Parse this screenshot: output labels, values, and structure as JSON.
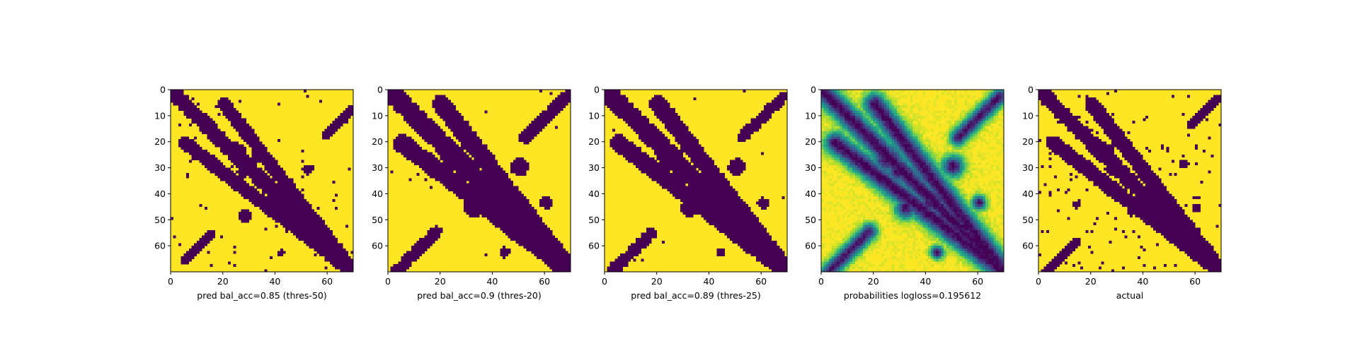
{
  "chart_data": [
    {
      "type": "heatmap",
      "caption": "pred bal_acc=0.85 (thres-50)",
      "mode": "binary",
      "xlim": [
        0,
        70
      ],
      "ylim": [
        70,
        0
      ],
      "xticks": [
        0,
        20,
        40,
        60
      ],
      "yticks": [
        0,
        10,
        20,
        30,
        40,
        50,
        60
      ],
      "grid_size": 70,
      "colormap": "viridis",
      "low_color": "#440154",
      "high_color": "#fde725",
      "seed": 11,
      "features": {
        "diagonal": {
          "width": 2.4
        },
        "anti_diagonal": {
          "from": [
            5,
            20
          ],
          "to": [
            70,
            70
          ],
          "width": 2.2
        },
        "top_right_arc": {
          "center": [
            64,
            12
          ],
          "length": 10,
          "width": 1.4
        },
        "bottom_left_arc": {
          "center": [
            10,
            60
          ],
          "length": 10,
          "width": 1.4
        },
        "blobs": [
          {
            "x": 25,
            "y": 24,
            "r": 3.2
          },
          {
            "x": 40,
            "y": 40,
            "r": 3.0
          },
          {
            "x": 27,
            "y": 31,
            "r": 2.0
          },
          {
            "x": 32,
            "y": 26,
            "r": 1.8
          },
          {
            "x": 28,
            "y": 48,
            "r": 2.2
          },
          {
            "x": 52,
            "y": 30,
            "r": 1.8
          },
          {
            "x": 46,
            "y": 49,
            "r": 1.6
          },
          {
            "x": 42,
            "y": 62,
            "r": 1.2
          }
        ],
        "noise": 0.015
      }
    },
    {
      "type": "heatmap",
      "caption": "pred bal_acc=0.9 (thres-20)",
      "mode": "binary",
      "xlim": [
        0,
        70
      ],
      "ylim": [
        70,
        0
      ],
      "xticks": [
        0,
        20,
        40,
        60
      ],
      "yticks": [
        0,
        10,
        20,
        30,
        40,
        50,
        60
      ],
      "grid_size": 70,
      "colormap": "viridis",
      "low_color": "#440154",
      "high_color": "#fde725",
      "seed": 23,
      "features": {
        "diagonal": {
          "width": 3.2
        },
        "anti_diagonal": {
          "from": [
            5,
            20
          ],
          "to": [
            70,
            70
          ],
          "width": 3.0
        },
        "top_right_arc": {
          "center": [
            60,
            10
          ],
          "length": 16,
          "width": 2.0
        },
        "bottom_left_arc": {
          "center": [
            10,
            62
          ],
          "length": 16,
          "width": 2.0
        },
        "blobs": [
          {
            "x": 25,
            "y": 26,
            "r": 4.5
          },
          {
            "x": 42,
            "y": 42,
            "r": 4.5
          },
          {
            "x": 29,
            "y": 31,
            "r": 3.5
          },
          {
            "x": 55,
            "y": 52,
            "r": 3.5
          },
          {
            "x": 50,
            "y": 29,
            "r": 3.0
          },
          {
            "x": 32,
            "y": 45,
            "r": 3.0
          },
          {
            "x": 60,
            "y": 43,
            "r": 2.0
          },
          {
            "x": 44,
            "y": 62,
            "r": 1.8
          }
        ],
        "noise": 0.004
      }
    },
    {
      "type": "heatmap",
      "caption": "pred bal_acc=0.89 (thres-25)",
      "mode": "binary",
      "xlim": [
        0,
        70
      ],
      "ylim": [
        70,
        0
      ],
      "xticks": [
        0,
        20,
        40,
        60
      ],
      "yticks": [
        0,
        10,
        20,
        30,
        40,
        50,
        60
      ],
      "grid_size": 70,
      "colormap": "viridis",
      "low_color": "#440154",
      "high_color": "#fde725",
      "seed": 37,
      "features": {
        "diagonal": {
          "width": 3.0
        },
        "anti_diagonal": {
          "from": [
            5,
            20
          ],
          "to": [
            70,
            70
          ],
          "width": 2.8
        },
        "top_right_arc": {
          "center": [
            60,
            10
          ],
          "length": 15,
          "width": 1.9
        },
        "bottom_left_arc": {
          "center": [
            10,
            62
          ],
          "length": 15,
          "width": 1.9
        },
        "blobs": [
          {
            "x": 25,
            "y": 26,
            "r": 4.2
          },
          {
            "x": 42,
            "y": 42,
            "r": 4.2
          },
          {
            "x": 29,
            "y": 31,
            "r": 3.3
          },
          {
            "x": 55,
            "y": 52,
            "r": 3.3
          },
          {
            "x": 50,
            "y": 29,
            "r": 2.8
          },
          {
            "x": 32,
            "y": 45,
            "r": 2.8
          },
          {
            "x": 60,
            "y": 43,
            "r": 1.8
          },
          {
            "x": 44,
            "y": 62,
            "r": 1.6
          }
        ],
        "noise": 0.005
      }
    },
    {
      "type": "heatmap",
      "caption": "probabilities logloss=0.195612",
      "mode": "continuous",
      "xlim": [
        0,
        70
      ],
      "ylim": [
        70,
        0
      ],
      "xticks": [
        0,
        20,
        40,
        60
      ],
      "yticks": [
        0,
        10,
        20,
        30,
        40,
        50,
        60
      ],
      "grid_size": 70,
      "colormap": "viridis",
      "low_color": "#440154",
      "high_color": "#fde725",
      "seed": 51,
      "features": {
        "diagonal": {
          "width": 3.0
        },
        "anti_diagonal": {
          "from": [
            5,
            20
          ],
          "to": [
            70,
            70
          ],
          "width": 3.0
        },
        "top_right_arc": {
          "center": [
            60,
            10
          ],
          "length": 16,
          "width": 2.2
        },
        "bottom_left_arc": {
          "center": [
            10,
            62
          ],
          "length": 16,
          "width": 2.2
        },
        "blobs": [
          {
            "x": 25,
            "y": 26,
            "r": 4.5
          },
          {
            "x": 42,
            "y": 42,
            "r": 4.5
          },
          {
            "x": 29,
            "y": 31,
            "r": 3.5
          },
          {
            "x": 55,
            "y": 52,
            "r": 3.5
          },
          {
            "x": 50,
            "y": 29,
            "r": 3.0
          },
          {
            "x": 32,
            "y": 45,
            "r": 3.0
          },
          {
            "x": 60,
            "y": 43,
            "r": 2.0
          },
          {
            "x": 44,
            "y": 62,
            "r": 1.8
          }
        ],
        "noise": 0.0
      }
    },
    {
      "type": "heatmap",
      "caption": "actual",
      "mode": "binary",
      "xlim": [
        0,
        70
      ],
      "ylim": [
        70,
        0
      ],
      "xticks": [
        0,
        20,
        40,
        60
      ],
      "yticks": [
        0,
        10,
        20,
        30,
        40,
        50,
        60
      ],
      "grid_size": 70,
      "colormap": "viridis",
      "low_color": "#440154",
      "high_color": "#fde725",
      "seed": 73,
      "features": {
        "diagonal": {
          "width": 2.4
        },
        "anti_diagonal": {
          "from": [
            5,
            20
          ],
          "to": [
            70,
            70
          ],
          "width": 2.4
        },
        "top_right_arc": {
          "center": [
            63,
            8
          ],
          "length": 10,
          "width": 1.4
        },
        "bottom_left_arc": {
          "center": [
            8,
            64
          ],
          "length": 12,
          "width": 1.4
        },
        "blobs": [
          {
            "x": 25,
            "y": 24,
            "r": 3.4
          },
          {
            "x": 40,
            "y": 40,
            "r": 3.0
          },
          {
            "x": 28,
            "y": 30,
            "r": 2.0
          },
          {
            "x": 52,
            "y": 53,
            "r": 2.2
          },
          {
            "x": 55,
            "y": 28,
            "r": 1.6
          },
          {
            "x": 35,
            "y": 46,
            "r": 1.6
          },
          {
            "x": 60,
            "y": 45,
            "r": 1.4
          },
          {
            "x": 14,
            "y": 44,
            "r": 1.2
          }
        ],
        "noise": 0.03
      }
    }
  ]
}
